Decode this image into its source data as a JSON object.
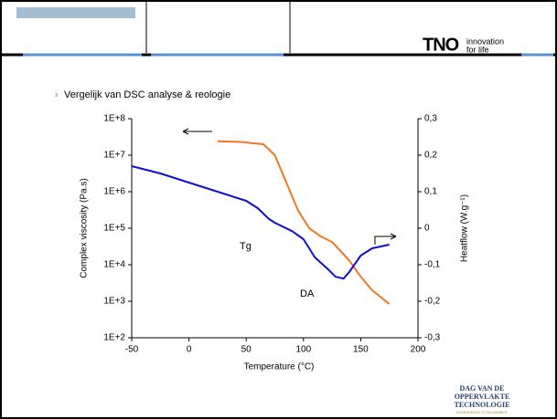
{
  "header": {
    "logo": "TNO",
    "tagline": [
      "innovation",
      "for life"
    ]
  },
  "bullet": "Vergelijk van DSC analyse & reologie",
  "chart_data": {
    "type": "line",
    "xlabel": "Temperature  (°C)",
    "ylabel": "Complex viscosity  (Pa.s)",
    "y2label": "Heatflow  (W.g⁻¹)",
    "annotations": [
      "Tg",
      "DA"
    ],
    "xlim": [
      -50,
      200
    ],
    "xticks": [
      -50,
      0,
      50,
      100,
      150,
      200
    ],
    "ylog": true,
    "ylim": [
      100,
      100000000
    ],
    "yticks": [
      {
        "value": 100,
        "label": "1E+2"
      },
      {
        "value": 1000,
        "label": "1E+3"
      },
      {
        "value": 10000,
        "label": "1E+4"
      },
      {
        "value": 100000,
        "label": "1E+5"
      },
      {
        "value": 1000000,
        "label": "1E+6"
      },
      {
        "value": 10000000,
        "label": "1E+7"
      },
      {
        "value": 100000000,
        "label": "1E+8"
      }
    ],
    "y2lim": [
      -0.3,
      0.3
    ],
    "y2ticks": [
      {
        "value": -0.3,
        "label": "-0,3"
      },
      {
        "value": -0.2,
        "label": "-0,2"
      },
      {
        "value": -0.1,
        "label": "-0,1"
      },
      0,
      {
        "value": 0.1,
        "label": "0,1"
      },
      {
        "value": 0.2,
        "label": "0,2"
      },
      {
        "value": 0.3,
        "label": "0,3"
      }
    ],
    "series": [
      {
        "color": "#f07820",
        "x": [
          25,
          45,
          65,
          75,
          85,
          95,
          105,
          115,
          125,
          140,
          150,
          160,
          175
        ],
        "values": [
          24000000,
          23000000,
          20000000,
          10000000,
          1800000,
          320000,
          100000,
          60000,
          42000,
          13000,
          4700,
          2000,
          840
        ]
      },
      {
        "color": "#1010d0",
        "axis": "y2",
        "x": [
          -50,
          -25,
          0,
          25,
          50,
          60,
          70,
          75,
          90,
          100,
          110,
          120,
          128,
          135,
          140,
          150,
          160,
          175
        ],
        "values": [
          0.17,
          0.15,
          0.125,
          0.1,
          0.075,
          0.055,
          0.025,
          0.015,
          -0.008,
          -0.03,
          -0.08,
          -0.108,
          -0.133,
          -0.138,
          -0.12,
          -0.075,
          -0.055,
          -0.045
        ]
      }
    ]
  },
  "footer_logo": {
    "lines": [
      "DAG VAN DE",
      "OPPERVLAKTE",
      "TECHNOLOGIE"
    ],
    "date": "DONDERDAG 27 NOVEMBER"
  }
}
